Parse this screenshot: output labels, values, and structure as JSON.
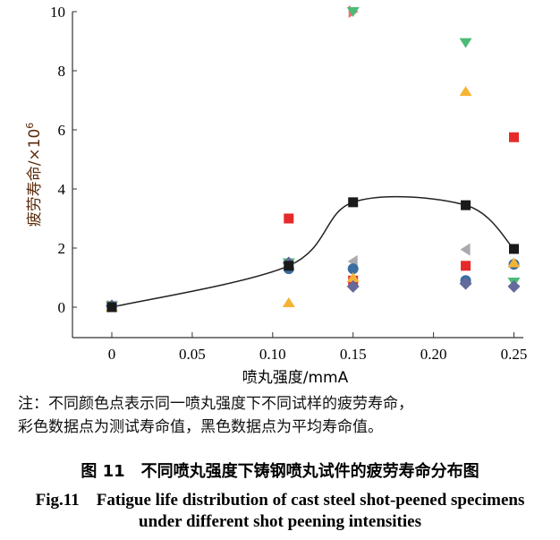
{
  "chart_data": {
    "type": "scatter",
    "xlabel": "喷丸强度/mmA",
    "ylabel": "疲劳寿命/×10",
    "ylabel_sup": "6",
    "xlim": [
      -0.02,
      0.255
    ],
    "ylim": [
      -1,
      10
    ],
    "xticks": [
      0,
      0.05,
      0.1,
      0.15,
      0.2,
      0.25
    ],
    "xtick_labels": [
      "0",
      "0.05",
      "0.10",
      "0.15",
      "0.20",
      "0.25"
    ],
    "yticks": [
      0,
      2,
      4,
      6,
      8,
      10
    ],
    "ytick_labels": [
      "0",
      "2",
      "4",
      "6",
      "8",
      "10"
    ],
    "grid": false,
    "test_points": [
      {
        "marker": "square",
        "color": "#e52a2a",
        "points": [
          [
            0,
            0.03
          ],
          [
            0.11,
            3.0
          ],
          [
            0.15,
            0.9
          ],
          [
            0.22,
            1.4
          ],
          [
            0.25,
            5.75
          ]
        ]
      },
      {
        "marker": "triangle-right",
        "color": "#ee6e6e",
        "points": [
          [
            0,
            0.03
          ],
          [
            0.15,
            10.0
          ]
        ]
      },
      {
        "marker": "triangle-down",
        "color": "#4dbb78",
        "points": [
          [
            0,
            0.05
          ],
          [
            0.11,
            1.5
          ],
          [
            0.15,
            10.0
          ],
          [
            0.22,
            8.95
          ],
          [
            0.25,
            0.85
          ]
        ]
      },
      {
        "marker": "triangle-left",
        "color": "#a9a9ae",
        "points": [
          [
            0,
            0.03
          ],
          [
            0.15,
            1.55
          ],
          [
            0.22,
            1.95
          ]
        ]
      },
      {
        "marker": "circle",
        "color": "#3a6ea0",
        "points": [
          [
            0,
            0.03
          ],
          [
            0.11,
            1.3
          ],
          [
            0.15,
            1.3
          ],
          [
            0.22,
            0.9
          ],
          [
            0.25,
            1.45
          ]
        ]
      },
      {
        "marker": "triangle-up",
        "color": "#f5b335",
        "points": [
          [
            0,
            0.0
          ],
          [
            0.11,
            0.15
          ],
          [
            0.15,
            1.0
          ],
          [
            0.22,
            7.3
          ],
          [
            0.25,
            1.5
          ]
        ]
      },
      {
        "marker": "diamond",
        "color": "#646a9a",
        "points": [
          [
            0,
            0.05
          ],
          [
            0.11,
            1.5
          ],
          [
            0.15,
            0.7
          ],
          [
            0.22,
            0.8
          ],
          [
            0.25,
            0.7
          ]
        ]
      }
    ],
    "average": {
      "marker": "square",
      "color": "#1a1a1a",
      "points": [
        [
          0,
          0.0
        ],
        [
          0.11,
          1.4
        ],
        [
          0.15,
          3.55
        ],
        [
          0.22,
          3.45
        ],
        [
          0.25,
          1.97
        ]
      ]
    }
  },
  "note": {
    "line1": "注：不同颜色点表示同一喷丸强度下不同试样的疲劳寿命，",
    "line2": "彩色数据点为测试寿命值，黑色数据点为平均寿命值。"
  },
  "caption": {
    "cn": "图 11　不同喷丸强度下铸钢喷丸试件的疲劳寿命分布图",
    "en1": "Fig.11　Fatigue life distribution of cast steel shot-peened specimens",
    "en2": "under different shot peening intensities"
  }
}
